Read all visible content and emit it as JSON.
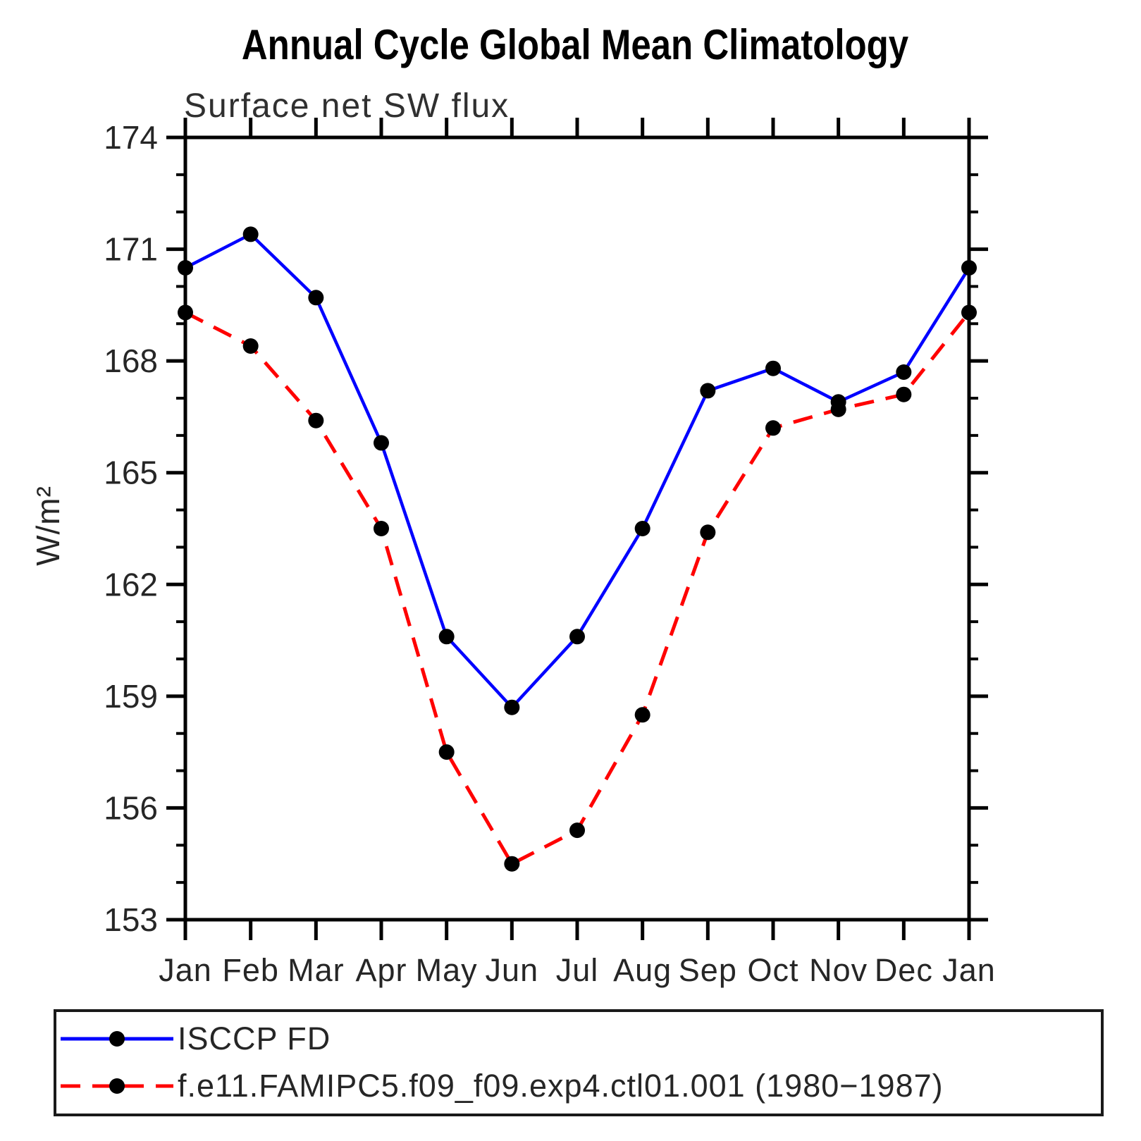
{
  "chart_data": {
    "type": "line",
    "title": "Annual Cycle Global Mean Climatology",
    "subtitle": "Surface net SW flux",
    "ylabel": "W/m²",
    "xlabel": "",
    "categories": [
      "Jan",
      "Feb",
      "Mar",
      "Apr",
      "May",
      "Jun",
      "Jul",
      "Aug",
      "Sep",
      "Oct",
      "Nov",
      "Dec",
      "Jan"
    ],
    "ylim": [
      153,
      174
    ],
    "yticks": [
      153,
      156,
      159,
      162,
      165,
      168,
      171,
      174
    ],
    "yminor_step": 1,
    "grid": false,
    "legend_position": "bottom-left-box",
    "axis_color": "#000000",
    "marker_color": "#000000",
    "series": [
      {
        "name": "ISCCP FD",
        "color": "#0000ff",
        "line": "solid",
        "marker": "filled-circle",
        "values": [
          170.5,
          171.4,
          169.7,
          165.8,
          160.6,
          158.7,
          160.6,
          163.5,
          167.2,
          167.8,
          166.9,
          167.7,
          170.5
        ]
      },
      {
        "name": "f.e11.FAMIPC5.f09_f09.exp4.ctl01.001 (1980-1987)",
        "color": "#ff0000",
        "line": "dashed",
        "marker": "filled-circle",
        "values": [
          169.3,
          168.4,
          166.4,
          163.5,
          157.5,
          154.5,
          155.4,
          158.5,
          163.4,
          166.2,
          166.7,
          167.1,
          169.3
        ]
      }
    ]
  },
  "legend": {
    "items": [
      {
        "label": "ISCCP FD"
      },
      {
        "label": "f.e11.FAMIPC5.f09_f09.exp4.ctl01.001 (1980−1987)"
      }
    ]
  }
}
